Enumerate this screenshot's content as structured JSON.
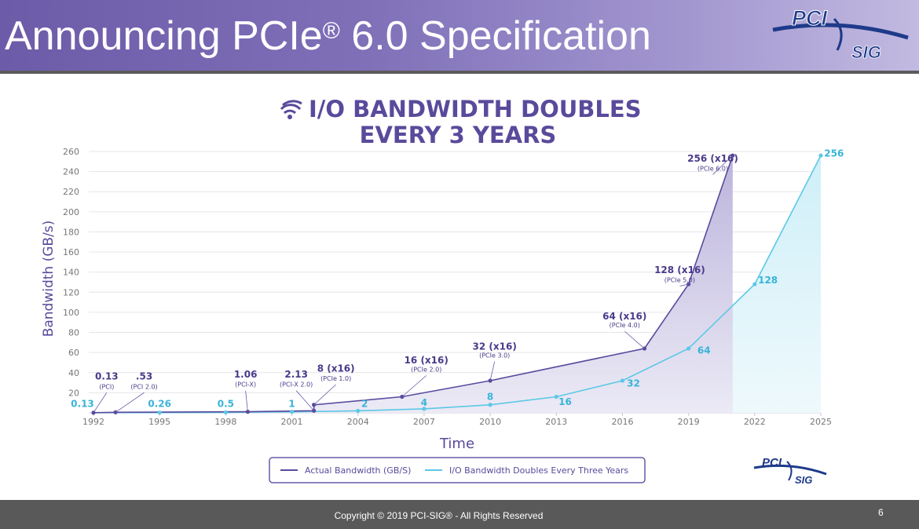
{
  "header": {
    "title_main": "Announcing PCIe",
    "title_mark": "®",
    "title_rest": " 6.0 Specification"
  },
  "logos": {
    "primary": "PCI",
    "secondary": "SIG"
  },
  "footer": {
    "copyright": "Copyright © 2019 PCI-SIG® - All Rights Reserved",
    "page_number": "6"
  },
  "colors": {
    "actual": "#5b4a9e",
    "doubling": "#5cc8e6",
    "title": "#5a4a9b",
    "header": "#7f70b8"
  },
  "chart_data": {
    "type": "line",
    "title_line1": "I/O BANDWIDTH DOUBLES",
    "title_line2": "EVERY 3 YEARS",
    "title_icon": "wifi-icon",
    "xlabel": "Time",
    "ylabel": "Bandwidth (GB/s)",
    "xlim": [
      1992,
      2025
    ],
    "ylim": [
      0,
      260
    ],
    "x_ticks": [
      1992,
      1995,
      1998,
      2001,
      2004,
      2007,
      2010,
      2013,
      2016,
      2019,
      2022,
      2025
    ],
    "y_ticks": [
      20,
      40,
      60,
      80,
      100,
      120,
      140,
      160,
      180,
      200,
      220,
      240,
      260
    ],
    "grid": true,
    "legend_position": "bottom",
    "series": [
      {
        "name": "Actual Bandwidth (GB/S)",
        "color": "#5b4a9e",
        "points": [
          {
            "x": 1992,
            "y": 0.13
          },
          {
            "x": 1993,
            "y": 0.53
          },
          {
            "x": 1999,
            "y": 1.06
          },
          {
            "x": 2002,
            "y": 2.13
          },
          {
            "x": 2002,
            "y": 8
          },
          {
            "x": 2006,
            "y": 16
          },
          {
            "x": 2010,
            "y": 32
          },
          {
            "x": 2017,
            "y": 64
          },
          {
            "x": 2019,
            "y": 128
          },
          {
            "x": 2021,
            "y": 256
          }
        ],
        "labels": [
          {
            "i": 0,
            "value": "0.13",
            "sub": "(PCI)",
            "lx": 1992.6,
            "ly": 33,
            "sx": 1992.6,
            "sy": 24
          },
          {
            "i": 1,
            "value": ".53",
            "sub": "(PCI 2.0)",
            "lx": 1994.3,
            "ly": 33,
            "sx": 1994.3,
            "sy": 24
          },
          {
            "i": 2,
            "value": "1.06",
            "sub": "(PCI-X)",
            "lx": 1998.9,
            "ly": 35,
            "sx": 1998.9,
            "sy": 26
          },
          {
            "i": 3,
            "value": "2.13",
            "sub": "(PCI-X 2.0)",
            "lx": 2001.2,
            "ly": 35,
            "sx": 2001.2,
            "sy": 26
          },
          {
            "i": 4,
            "value": "8 (x16)",
            "sub": "(PCIe 1.0)",
            "lx": 2003.0,
            "ly": 41,
            "sx": 2003.0,
            "sy": 32
          },
          {
            "i": 5,
            "value": "16 (x16)",
            "sub": "(PCIe 2.0)",
            "lx": 2007.1,
            "ly": 49,
            "sx": 2007.1,
            "sy": 41
          },
          {
            "i": 6,
            "value": "32 (x16)",
            "sub": "(PCIe 3.0)",
            "lx": 2010.2,
            "ly": 63,
            "sx": 2010.2,
            "sy": 55
          },
          {
            "i": 7,
            "value": "64 (x16)",
            "sub": "(PCIe 4.0)",
            "lx": 2016.1,
            "ly": 93,
            "sx": 2016.1,
            "sy": 85
          },
          {
            "i": 8,
            "value": "128 (x16)",
            "sub": "(PCIe 5.0)",
            "lx": 2018.6,
            "ly": 139,
            "sx": 2018.6,
            "sy": 130
          },
          {
            "i": 9,
            "value": "256 (x16)",
            "sub": "(PCIe 6.0)",
            "lx": 2020.1,
            "ly": 250,
            "sx": 2020.1,
            "sy": 241
          }
        ]
      },
      {
        "name": "I/O Bandwidth Doubles Every Three Years",
        "color": "#5cc8e6",
        "points": [
          {
            "x": 1992,
            "y": 0.13
          },
          {
            "x": 1995,
            "y": 0.26
          },
          {
            "x": 1998,
            "y": 0.5
          },
          {
            "x": 2001,
            "y": 1
          },
          {
            "x": 2004,
            "y": 2
          },
          {
            "x": 2007,
            "y": 4
          },
          {
            "x": 2010,
            "y": 8
          },
          {
            "x": 2013,
            "y": 16
          },
          {
            "x": 2016,
            "y": 32
          },
          {
            "x": 2019,
            "y": 64
          },
          {
            "x": 2022,
            "y": 128
          },
          {
            "x": 2025,
            "y": 256
          }
        ],
        "labels": [
          {
            "i": 0,
            "value": "0.13",
            "lx": 1991.5,
            "ly": 6
          },
          {
            "i": 1,
            "value": "0.26",
            "lx": 1995.0,
            "ly": 6
          },
          {
            "i": 2,
            "value": "0.5",
            "lx": 1998.0,
            "ly": 6
          },
          {
            "i": 3,
            "value": "1",
            "lx": 2001.0,
            "ly": 6
          },
          {
            "i": 4,
            "value": "2",
            "lx": 2004.3,
            "ly": 6
          },
          {
            "i": 5,
            "value": "4",
            "lx": 2007.0,
            "ly": 7
          },
          {
            "i": 6,
            "value": "8",
            "lx": 2010.0,
            "ly": 13
          },
          {
            "i": 7,
            "value": "16",
            "lx": 2013.4,
            "ly": 8
          },
          {
            "i": 8,
            "value": "32",
            "lx": 2016.5,
            "ly": 26
          },
          {
            "i": 9,
            "value": "64",
            "lx": 2019.7,
            "ly": 59
          },
          {
            "i": 10,
            "value": "128",
            "lx": 2022.6,
            "ly": 129
          },
          {
            "i": 11,
            "value": "256",
            "lx": 2025.6,
            "ly": 255
          }
        ]
      }
    ]
  }
}
